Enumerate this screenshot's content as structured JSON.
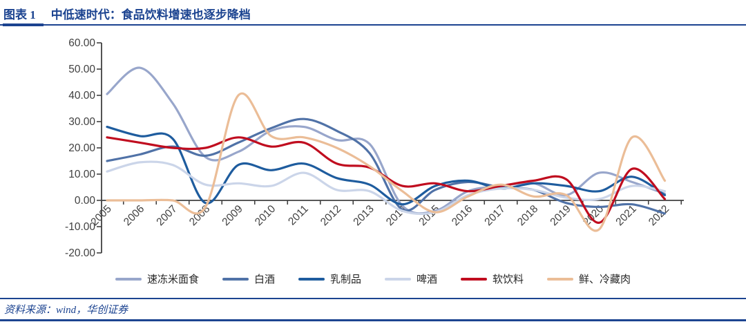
{
  "header": {
    "figure_label": "图表 1",
    "title": "中低速时代：食品饮料增速也逐步降档"
  },
  "footer": {
    "source": "资料来源：wind，华创证券"
  },
  "colors": {
    "accent_navy": "#1B4390",
    "axis": "#404040",
    "tick_text": "#3F3F3F",
    "background": "#FFFFFF"
  },
  "chart_data": {
    "type": "line",
    "title": "中低速时代：食品饮料增速也逐步降档",
    "x": [
      "2005",
      "2006",
      "2007",
      "2008",
      "2009",
      "2010",
      "2011",
      "2012",
      "2013",
      "2014",
      "2015",
      "2016",
      "2017",
      "2018",
      "2019",
      "2020",
      "2021",
      "2022"
    ],
    "series": [
      {
        "name": "速冻米面食",
        "color": "#98A6CB",
        "values": [
          40.5,
          50.5,
          37,
          16.5,
          18.5,
          26.5,
          28,
          23,
          21.5,
          -2,
          -4,
          3.5,
          5.5,
          6.5,
          2,
          10.5,
          7,
          2.5
        ]
      },
      {
        "name": "白酒",
        "color": "#5072A7",
        "values": [
          15,
          17.5,
          20.5,
          17,
          22,
          27.5,
          31,
          26.5,
          18,
          -3.5,
          4,
          7,
          5,
          4,
          -1,
          -2.5,
          -1.5,
          -5
        ]
      },
      {
        "name": "乳制品",
        "color": "#1E5C9E",
        "values": [
          28,
          24.5,
          23.5,
          -1,
          13.5,
          11.5,
          14,
          8.5,
          6,
          -1.5,
          5.5,
          7.5,
          4.5,
          6.5,
          5.5,
          3.5,
          9,
          2
        ]
      },
      {
        "name": "啤酒",
        "color": "#CBD5E9",
        "values": [
          11,
          14.5,
          13.5,
          6,
          6.5,
          5.5,
          10.5,
          4,
          3.5,
          -4,
          -4.5,
          2,
          4.5,
          4,
          1,
          0.5,
          5.5,
          3.5
        ]
      },
      {
        "name": "软饮料",
        "color": "#C00D1F",
        "values": [
          24,
          22,
          20,
          20,
          24,
          20.5,
          22,
          14,
          12.5,
          5.5,
          6.5,
          3.5,
          5.5,
          7.5,
          8,
          -8.5,
          12,
          0.5
        ]
      },
      {
        "name": "鲜、冷藏肉",
        "color": "#EBBD97",
        "values": [
          0,
          0,
          0,
          -2.5,
          40,
          24.5,
          24,
          20,
          13,
          3.5,
          -4.5,
          1.5,
          6,
          1.5,
          2,
          -11,
          24,
          7.5
        ]
      }
    ],
    "ylim": [
      -20,
      60
    ],
    "y_tick_values": [
      60,
      50,
      40,
      30,
      20,
      10,
      0,
      -10,
      -20
    ],
    "y_tick_labels": [
      "60.00",
      "50.00",
      "40.00",
      "30.00",
      "20.00",
      "10.00",
      "0.00",
      "-10.00",
      "-20.00"
    ],
    "xlabel": "",
    "ylabel": "",
    "grid": false,
    "legend_position": "bottom"
  }
}
